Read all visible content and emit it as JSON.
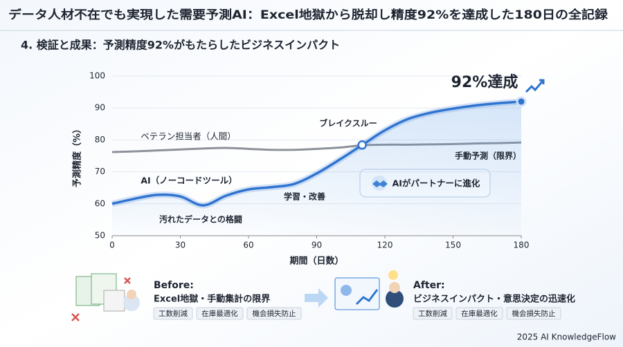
{
  "header": {
    "title": "データ人材不在でも実現した需要予測AI：Excel地獄から脱却し精度92%を達成した180日の全記録",
    "subtitle": "4. 検証と成果：予測精度92%がもたらしたビジネスインパクト"
  },
  "chart_data": {
    "type": "line",
    "x": [
      0,
      10,
      20,
      30,
      40,
      50,
      60,
      70,
      80,
      90,
      100,
      110,
      120,
      130,
      140,
      150,
      160,
      170,
      180
    ],
    "series": [
      {
        "name": "ベテラン担当者（人間）",
        "color": "#8c9199",
        "values": [
          76.2,
          76.4,
          76.7,
          77,
          77.3,
          77.5,
          77.2,
          76.9,
          76.9,
          77.2,
          77.6,
          78.3,
          78.5,
          78.5,
          78.6,
          78.7,
          78.9,
          79,
          79.2
        ]
      },
      {
        "name": "AI（ノーコードツール）",
        "color": "#2f74d0",
        "values": [
          60,
          61.6,
          62.8,
          62.3,
          59.5,
          62.5,
          64.5,
          65.2,
          66.2,
          69.5,
          73.8,
          78.4,
          83,
          86.5,
          88.5,
          89.8,
          90.8,
          91.5,
          92
        ]
      }
    ],
    "xlabel": "期間（日数）",
    "ylabel": "予測精度（%）",
    "xlim": [
      0,
      180
    ],
    "ylim": [
      50,
      100
    ],
    "xticks": [
      0,
      30,
      60,
      90,
      120,
      150,
      180
    ],
    "yticks": [
      50,
      60,
      70,
      80,
      90,
      100
    ],
    "grid": true,
    "annotations": [
      "92%達成",
      "手動予測（限界）",
      "汚れたデータとの格闘",
      "学習・改善",
      "ブレイクスルー",
      "AIがパートナーに進化"
    ]
  },
  "before": {
    "heading": "Before:",
    "text": "Excel地獄・手動集計の限界",
    "tags": [
      "工数削減",
      "在庫最適化",
      "機会損失防止"
    ]
  },
  "after": {
    "heading": "After:",
    "text": "ビジネスインパクト・意思決定の迅速化",
    "tags": [
      "工数削減",
      "在庫最適化",
      "機会損失防止"
    ]
  },
  "footer": "2025 AI KnowledgeFlow"
}
